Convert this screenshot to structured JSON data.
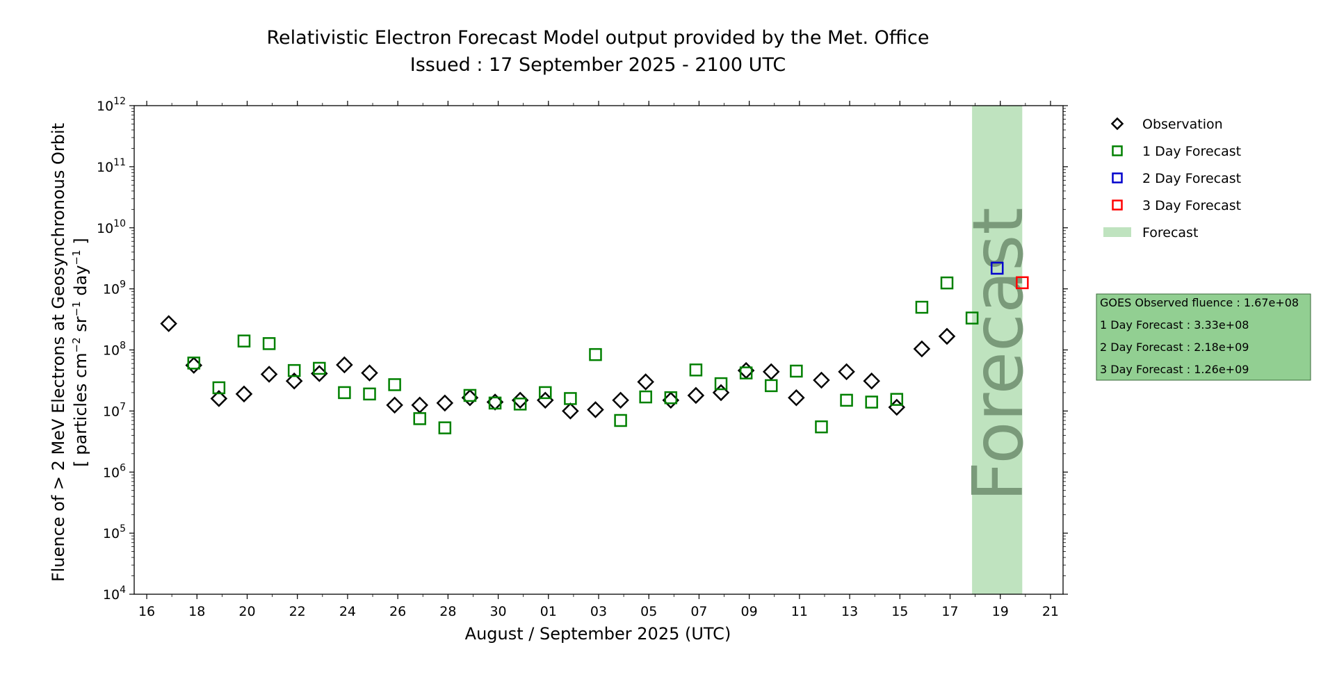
{
  "chart_data": {
    "type": "scatter",
    "title": "Relativistic Electron Forecast Model output provided by the Met. Office",
    "subtitle": "Issued : 17 September 2025 - 2100 UTC",
    "xlabel": "August / September 2025 (UTC)",
    "ylabel_line1": "Fluence of > 2 MeV Electrons at Geosynchronous Orbit",
    "ylabel_line2_prefix": "[ particles cm",
    "ylabel_line2_exp1": "−2",
    "ylabel_line2_mid": " sr",
    "ylabel_line2_exp2": "−1",
    "ylabel_line2_mid2": " day",
    "ylabel_line2_exp3": "−1",
    "ylabel_line2_suffix": " ]",
    "y_scale": "log",
    "ylim": [
      10000,
      1000000000000
    ],
    "xlim": [
      "2025-08-15T12:00",
      "2025-09-21T12:00"
    ],
    "y_ticks": [
      {
        "base": "10",
        "exp": "4",
        "value": 10000
      },
      {
        "base": "10",
        "exp": "5",
        "value": 100000
      },
      {
        "base": "10",
        "exp": "6",
        "value": 1000000
      },
      {
        "base": "10",
        "exp": "7",
        "value": 10000000
      },
      {
        "base": "10",
        "exp": "8",
        "value": 100000000
      },
      {
        "base": "10",
        "exp": "9",
        "value": 1000000000
      },
      {
        "base": "10",
        "exp": "10",
        "value": 10000000000
      },
      {
        "base": "10",
        "exp": "11",
        "value": 100000000000
      },
      {
        "base": "10",
        "exp": "12",
        "value": 1000000000000
      }
    ],
    "x_ticks": [
      {
        "label": "16",
        "date": "2025-08-16"
      },
      {
        "label": "18",
        "date": "2025-08-18"
      },
      {
        "label": "20",
        "date": "2025-08-20"
      },
      {
        "label": "22",
        "date": "2025-08-22"
      },
      {
        "label": "24",
        "date": "2025-08-24"
      },
      {
        "label": "26",
        "date": "2025-08-26"
      },
      {
        "label": "28",
        "date": "2025-08-28"
      },
      {
        "label": "30",
        "date": "2025-08-30"
      },
      {
        "label": "01",
        "date": "2025-09-01"
      },
      {
        "label": "03",
        "date": "2025-09-03"
      },
      {
        "label": "05",
        "date": "2025-09-05"
      },
      {
        "label": "07",
        "date": "2025-09-07"
      },
      {
        "label": "09",
        "date": "2025-09-09"
      },
      {
        "label": "11",
        "date": "2025-09-11"
      },
      {
        "label": "13",
        "date": "2025-09-13"
      },
      {
        "label": "15",
        "date": "2025-09-15"
      },
      {
        "label": "17",
        "date": "2025-09-17"
      },
      {
        "label": "19",
        "date": "2025-09-19"
      },
      {
        "label": "21",
        "date": "2025-09-21"
      }
    ],
    "forecast_band": {
      "start": "2025-09-17T21:00",
      "end": "2025-09-19T21:00",
      "label": "Forecast",
      "color": "#bfe3bf"
    },
    "series": [
      {
        "name": "Observation",
        "marker": "diamond",
        "color": "#000000",
        "points": [
          {
            "date": "2025-08-16T21:00",
            "value": 270000000
          },
          {
            "date": "2025-08-17T21:00",
            "value": 56000000
          },
          {
            "date": "2025-08-18T21:00",
            "value": 16000000
          },
          {
            "date": "2025-08-19T21:00",
            "value": 19000000
          },
          {
            "date": "2025-08-20T21:00",
            "value": 40000000
          },
          {
            "date": "2025-08-21T21:00",
            "value": 31000000
          },
          {
            "date": "2025-08-22T21:00",
            "value": 41000000
          },
          {
            "date": "2025-08-23T21:00",
            "value": 57000000
          },
          {
            "date": "2025-08-24T21:00",
            "value": 42000000
          },
          {
            "date": "2025-08-25T21:00",
            "value": 12500000
          },
          {
            "date": "2025-08-26T21:00",
            "value": 12500000
          },
          {
            "date": "2025-08-27T21:00",
            "value": 13500000
          },
          {
            "date": "2025-08-28T21:00",
            "value": 16500000
          },
          {
            "date": "2025-08-29T21:00",
            "value": 14000000
          },
          {
            "date": "2025-08-30T21:00",
            "value": 15000000
          },
          {
            "date": "2025-08-31T21:00",
            "value": 15000000
          },
          {
            "date": "2025-09-01T21:00",
            "value": 10000000
          },
          {
            "date": "2025-09-02T21:00",
            "value": 10500000
          },
          {
            "date": "2025-09-03T21:00",
            "value": 15000000
          },
          {
            "date": "2025-09-04T21:00",
            "value": 30000000
          },
          {
            "date": "2025-09-05T21:00",
            "value": 15000000
          },
          {
            "date": "2025-09-06T21:00",
            "value": 18000000
          },
          {
            "date": "2025-09-07T21:00",
            "value": 20000000
          },
          {
            "date": "2025-09-08T21:00",
            "value": 46000000
          },
          {
            "date": "2025-09-09T21:00",
            "value": 44000000
          },
          {
            "date": "2025-09-10T21:00",
            "value": 16500000
          },
          {
            "date": "2025-09-11T21:00",
            "value": 32000000
          },
          {
            "date": "2025-09-12T21:00",
            "value": 44000000
          },
          {
            "date": "2025-09-13T21:00",
            "value": 31000000
          },
          {
            "date": "2025-09-14T21:00",
            "value": 11500000
          },
          {
            "date": "2025-09-15T21:00",
            "value": 104000000
          },
          {
            "date": "2025-09-16T21:00",
            "value": 167000000
          }
        ]
      },
      {
        "name": "1 Day Forecast",
        "marker": "square",
        "color": "#008000",
        "points": [
          {
            "date": "2025-08-17T21:00",
            "value": 61000000
          },
          {
            "date": "2025-08-18T21:00",
            "value": 24000000
          },
          {
            "date": "2025-08-19T21:00",
            "value": 140000000
          },
          {
            "date": "2025-08-20T21:00",
            "value": 127000000
          },
          {
            "date": "2025-08-21T21:00",
            "value": 46000000
          },
          {
            "date": "2025-08-22T21:00",
            "value": 50000000
          },
          {
            "date": "2025-08-23T21:00",
            "value": 20000000
          },
          {
            "date": "2025-08-24T21:00",
            "value": 19000000
          },
          {
            "date": "2025-08-25T21:00",
            "value": 27000000
          },
          {
            "date": "2025-08-26T21:00",
            "value": 7500000
          },
          {
            "date": "2025-08-27T21:00",
            "value": 5300000
          },
          {
            "date": "2025-08-28T21:00",
            "value": 18000000
          },
          {
            "date": "2025-08-29T21:00",
            "value": 13500000
          },
          {
            "date": "2025-08-30T21:00",
            "value": 13000000
          },
          {
            "date": "2025-08-31T21:00",
            "value": 20000000
          },
          {
            "date": "2025-09-01T21:00",
            "value": 16000000
          },
          {
            "date": "2025-09-02T21:00",
            "value": 84000000
          },
          {
            "date": "2025-09-03T21:00",
            "value": 7000000
          },
          {
            "date": "2025-09-04T21:00",
            "value": 17000000
          },
          {
            "date": "2025-09-05T21:00",
            "value": 16500000
          },
          {
            "date": "2025-09-06T21:00",
            "value": 47000000
          },
          {
            "date": "2025-09-07T21:00",
            "value": 28000000
          },
          {
            "date": "2025-09-08T21:00",
            "value": 42000000
          },
          {
            "date": "2025-09-09T21:00",
            "value": 26000000
          },
          {
            "date": "2025-09-10T21:00",
            "value": 45000000
          },
          {
            "date": "2025-09-11T21:00",
            "value": 5500000
          },
          {
            "date": "2025-09-12T21:00",
            "value": 15000000
          },
          {
            "date": "2025-09-13T21:00",
            "value": 14000000
          },
          {
            "date": "2025-09-14T21:00",
            "value": 15500000
          },
          {
            "date": "2025-09-15T21:00",
            "value": 500000000
          },
          {
            "date": "2025-09-16T21:00",
            "value": 1250000000
          },
          {
            "date": "2025-09-17T21:00",
            "value": 333000000
          }
        ]
      },
      {
        "name": "2 Day Forecast",
        "marker": "square",
        "color": "#0000cc",
        "points": [
          {
            "date": "2025-09-18T21:00",
            "value": 2180000000
          }
        ]
      },
      {
        "name": "3 Day Forecast",
        "marker": "square",
        "color": "#ff0000",
        "points": [
          {
            "date": "2025-09-19T21:00",
            "value": 1260000000
          }
        ]
      }
    ],
    "legend": {
      "placement": "right",
      "entries": [
        {
          "label": "Observation",
          "marker": "diamond",
          "color": "#000000"
        },
        {
          "label": "1 Day Forecast",
          "marker": "square",
          "color": "#008000"
        },
        {
          "label": "2 Day Forecast",
          "marker": "square",
          "color": "#0000cc"
        },
        {
          "label": "3 Day Forecast",
          "marker": "square",
          "color": "#ff0000"
        },
        {
          "label": "Forecast",
          "marker": "band",
          "color": "#bfe3bf"
        }
      ]
    },
    "info_box": {
      "background": "#92cf92",
      "lines": [
        "GOES Observed fluence : 1.67e+08",
        "1 Day Forecast : 3.33e+08",
        "2 Day Forecast : 2.18e+09",
        "3 Day Forecast : 1.26e+09"
      ]
    }
  }
}
